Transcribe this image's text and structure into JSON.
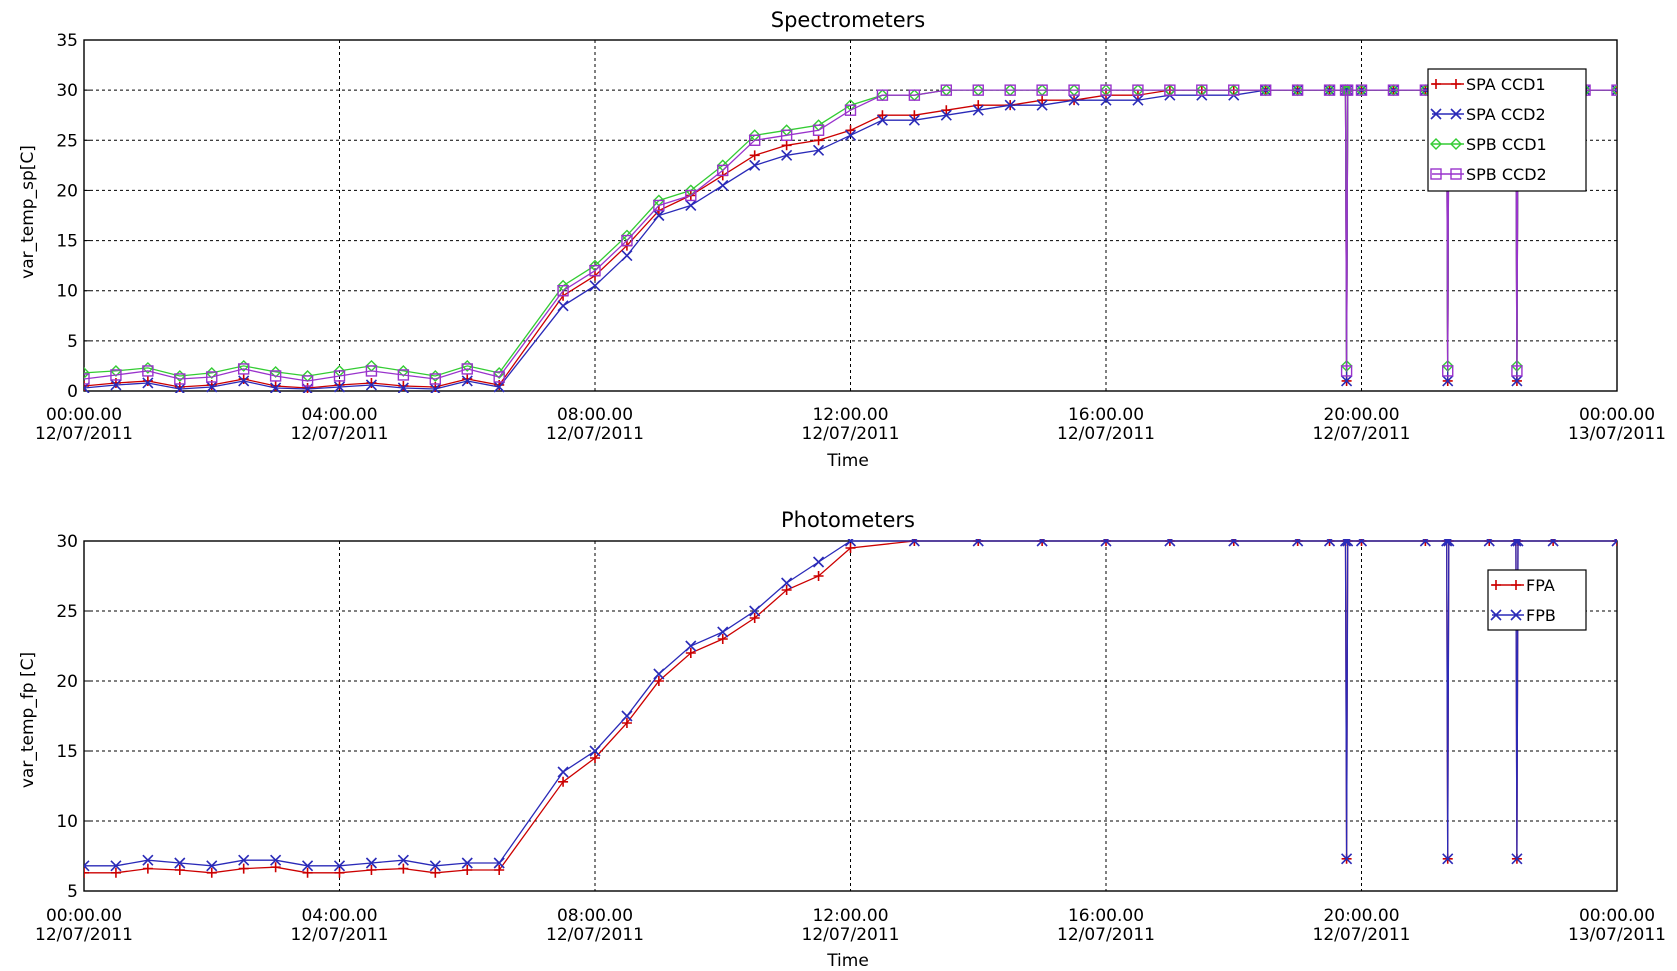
{
  "chart_data": [
    {
      "type": "line",
      "title": "Spectrometers",
      "xlabel": "Time",
      "ylabel": "var_temp_sp[C]",
      "xlim": [
        "12/07/2011 00:00:00",
        "13/07/2011 00:00:00"
      ],
      "ylim": [
        0,
        35
      ],
      "yticks": [
        0,
        5,
        10,
        15,
        20,
        25,
        30,
        35
      ],
      "xticks": [
        {
          "time": "00:00.00",
          "date": "12/07/2011"
        },
        {
          "time": "04:00.00",
          "date": "12/07/2011"
        },
        {
          "time": "08:00.00",
          "date": "12/07/2011"
        },
        {
          "time": "12:00.00",
          "date": "12/07/2011"
        },
        {
          "time": "16:00.00",
          "date": "12/07/2011"
        },
        {
          "time": "20:00.00",
          "date": "12/07/2011"
        },
        {
          "time": "00:00.00",
          "date": "13/07/2011"
        }
      ],
      "grid": true,
      "legend_position": "top-right",
      "series": [
        {
          "name": "SPA CCD1",
          "color": "#cc0000",
          "marker": "plus",
          "x": [
            "00:00",
            "00:30",
            "01:00",
            "01:30",
            "02:00",
            "02:30",
            "03:00",
            "03:30",
            "04:00",
            "04:30",
            "05:00",
            "05:30",
            "06:00",
            "06:30",
            "07:30",
            "08:00",
            "08:30",
            "09:00",
            "09:30",
            "10:00",
            "10:30",
            "11:00",
            "11:30",
            "12:00",
            "12:30",
            "13:00",
            "13:30",
            "14:00",
            "14:30",
            "15:00",
            "15:30",
            "16:00",
            "16:30",
            "17:00",
            "17:30",
            "18:00",
            "18:30",
            "19:00",
            "19:30",
            "19:45",
            "19:46",
            "19:47",
            "20:00",
            "20:30",
            "21:00",
            "21:15",
            "21:20",
            "21:21",
            "21:22",
            "21:30",
            "22:00",
            "22:20",
            "22:25",
            "22:26",
            "22:27",
            "22:30",
            "23:00",
            "23:30",
            "24:00"
          ],
          "y": [
            0.5,
            0.8,
            1.0,
            0.4,
            0.6,
            1.2,
            0.5,
            0.3,
            0.6,
            0.8,
            0.5,
            0.4,
            1.2,
            0.6,
            9.5,
            11.5,
            14.5,
            18.0,
            19.5,
            21.5,
            23.5,
            24.5,
            25.0,
            26.0,
            27.5,
            27.5,
            28.0,
            28.5,
            28.5,
            29.0,
            29.0,
            29.5,
            29.5,
            30,
            30,
            30,
            30,
            30,
            30,
            30,
            1.0,
            30,
            30,
            30,
            30,
            30,
            30,
            1.0,
            30,
            30,
            30,
            30,
            30,
            1.0,
            30,
            30,
            30,
            30,
            30
          ]
        },
        {
          "name": "SPA CCD2",
          "color": "#2a2ab8",
          "marker": "cross",
          "x": [
            "00:00",
            "00:30",
            "01:00",
            "01:30",
            "02:00",
            "02:30",
            "03:00",
            "03:30",
            "04:00",
            "04:30",
            "05:00",
            "05:30",
            "06:00",
            "06:30",
            "07:30",
            "08:00",
            "08:30",
            "09:00",
            "09:30",
            "10:00",
            "10:30",
            "11:00",
            "11:30",
            "12:00",
            "12:30",
            "13:00",
            "13:30",
            "14:00",
            "14:30",
            "15:00",
            "15:30",
            "16:00",
            "16:30",
            "17:00",
            "17:30",
            "18:00",
            "18:30",
            "19:00",
            "19:30",
            "19:45",
            "19:46",
            "19:47",
            "20:00",
            "20:30",
            "21:00",
            "21:15",
            "21:20",
            "21:21",
            "21:22",
            "21:30",
            "22:00",
            "22:20",
            "22:25",
            "22:26",
            "22:27",
            "22:30",
            "23:00",
            "23:30",
            "24:00"
          ],
          "y": [
            0.3,
            0.6,
            0.8,
            0.2,
            0.4,
            1.0,
            0.3,
            0.2,
            0.4,
            0.6,
            0.3,
            0.2,
            1.0,
            0.4,
            8.5,
            10.5,
            13.5,
            17.5,
            18.5,
            20.5,
            22.5,
            23.5,
            24.0,
            25.5,
            27.0,
            27.0,
            27.5,
            28.0,
            28.5,
            28.5,
            29.0,
            29.0,
            29.0,
            29.5,
            29.5,
            29.5,
            30,
            30,
            30,
            30,
            1.0,
            30,
            30,
            30,
            30,
            30,
            30,
            1.0,
            30,
            30,
            30,
            30,
            30,
            1.0,
            30,
            30,
            30,
            30,
            30
          ]
        },
        {
          "name": "SPB CCD1",
          "color": "#33cc33",
          "marker": "diamond",
          "x": [
            "00:00",
            "00:30",
            "01:00",
            "01:30",
            "02:00",
            "02:30",
            "03:00",
            "03:30",
            "04:00",
            "04:30",
            "05:00",
            "05:30",
            "06:00",
            "06:30",
            "07:30",
            "08:00",
            "08:30",
            "09:00",
            "09:30",
            "10:00",
            "10:30",
            "11:00",
            "11:30",
            "12:00",
            "12:30",
            "13:00",
            "13:30",
            "14:00",
            "14:30",
            "15:00",
            "15:30",
            "16:00",
            "16:30",
            "17:00",
            "17:30",
            "18:00",
            "18:30",
            "19:00",
            "19:30",
            "19:45",
            "19:46",
            "19:47",
            "20:00",
            "20:30",
            "21:00",
            "21:15",
            "21:20",
            "21:21",
            "21:22",
            "21:30",
            "22:00",
            "22:20",
            "22:25",
            "22:26",
            "22:27",
            "22:30",
            "23:00",
            "23:30",
            "24:00"
          ],
          "y": [
            1.8,
            2.0,
            2.3,
            1.5,
            1.8,
            2.5,
            1.9,
            1.5,
            2.0,
            2.5,
            2.0,
            1.5,
            2.5,
            1.8,
            10.5,
            12.5,
            15.5,
            19.0,
            20.0,
            22.5,
            25.5,
            26.0,
            26.5,
            28.5,
            29.5,
            29.5,
            30,
            30,
            30,
            30,
            30,
            30,
            30,
            30,
            30,
            30,
            30,
            30,
            30,
            30,
            2.5,
            30,
            30,
            30,
            30,
            30,
            30,
            2.5,
            30,
            30,
            30,
            30,
            30,
            2.5,
            30,
            30,
            30,
            30,
            30
          ]
        },
        {
          "name": "SPB CCD2",
          "color": "#9933cc",
          "marker": "square",
          "x": [
            "00:00",
            "00:30",
            "01:00",
            "01:30",
            "02:00",
            "02:30",
            "03:00",
            "03:30",
            "04:00",
            "04:30",
            "05:00",
            "05:30",
            "06:00",
            "06:30",
            "07:30",
            "08:00",
            "08:30",
            "09:00",
            "09:30",
            "10:00",
            "10:30",
            "11:00",
            "11:30",
            "12:00",
            "12:30",
            "13:00",
            "13:30",
            "14:00",
            "14:30",
            "15:00",
            "15:30",
            "16:00",
            "16:30",
            "17:00",
            "17:30",
            "18:00",
            "18:30",
            "19:00",
            "19:30",
            "19:45",
            "19:46",
            "19:47",
            "20:00",
            "20:30",
            "21:00",
            "21:15",
            "21:20",
            "21:21",
            "21:22",
            "21:30",
            "22:00",
            "22:20",
            "22:25",
            "22:26",
            "22:27",
            "22:30",
            "23:00",
            "23:30",
            "24:00"
          ],
          "y": [
            1.2,
            1.6,
            2.0,
            1.2,
            1.4,
            2.2,
            1.5,
            1.0,
            1.5,
            2.0,
            1.6,
            1.2,
            2.2,
            1.4,
            10.0,
            12.0,
            15.0,
            18.5,
            19.5,
            22.0,
            25.0,
            25.5,
            26.0,
            28.0,
            29.5,
            29.5,
            30,
            30,
            30,
            30,
            30,
            30,
            30,
            30,
            30,
            30,
            30,
            30,
            30,
            30,
            2.0,
            30,
            30,
            30,
            30,
            30,
            30,
            2.0,
            30,
            30,
            30,
            30,
            30,
            2.0,
            30,
            30,
            30,
            30,
            30
          ]
        }
      ]
    },
    {
      "type": "line",
      "title": "Photometers",
      "xlabel": "Time",
      "ylabel": "var_temp_fp [C]",
      "xlim": [
        "12/07/2011 00:00:00",
        "13/07/2011 00:00:00"
      ],
      "ylim": [
        5,
        30
      ],
      "yticks": [
        5,
        10,
        15,
        20,
        25,
        30
      ],
      "xticks": [
        {
          "time": "00:00.00",
          "date": "12/07/2011"
        },
        {
          "time": "04:00.00",
          "date": "12/07/2011"
        },
        {
          "time": "08:00.00",
          "date": "12/07/2011"
        },
        {
          "time": "12:00.00",
          "date": "12/07/2011"
        },
        {
          "time": "16:00.00",
          "date": "12/07/2011"
        },
        {
          "time": "20:00.00",
          "date": "12/07/2011"
        },
        {
          "time": "00:00.00",
          "date": "13/07/2011"
        }
      ],
      "grid": true,
      "legend_position": "top-right",
      "series": [
        {
          "name": "FPA",
          "color": "#cc0000",
          "marker": "plus",
          "x": [
            "00:00",
            "00:30",
            "01:00",
            "01:30",
            "02:00",
            "02:30",
            "03:00",
            "03:30",
            "04:00",
            "04:30",
            "05:00",
            "05:30",
            "06:00",
            "06:30",
            "07:30",
            "08:00",
            "08:30",
            "09:00",
            "09:30",
            "10:00",
            "10:30",
            "11:00",
            "11:30",
            "12:00",
            "13:00",
            "14:00",
            "15:00",
            "16:00",
            "17:00",
            "18:00",
            "19:00",
            "19:30",
            "19:45",
            "19:46",
            "19:47",
            "20:00",
            "21:00",
            "21:20",
            "21:21",
            "21:22",
            "22:00",
            "22:25",
            "22:26",
            "22:27",
            "23:00",
            "24:00"
          ],
          "y": [
            6.3,
            6.3,
            6.6,
            6.5,
            6.3,
            6.6,
            6.7,
            6.3,
            6.3,
            6.5,
            6.6,
            6.3,
            6.5,
            6.5,
            12.8,
            14.5,
            17.0,
            20.0,
            22.0,
            23.0,
            24.5,
            26.5,
            27.5,
            29.5,
            30,
            30,
            30,
            30,
            30,
            30,
            30,
            30,
            30,
            7.3,
            30,
            30,
            30,
            30,
            7.3,
            30,
            30,
            30,
            7.3,
            30,
            30,
            30
          ]
        },
        {
          "name": "FPB",
          "color": "#2a2ab8",
          "marker": "cross",
          "x": [
            "00:00",
            "00:30",
            "01:00",
            "01:30",
            "02:00",
            "02:30",
            "03:00",
            "03:30",
            "04:00",
            "04:30",
            "05:00",
            "05:30",
            "06:00",
            "06:30",
            "07:30",
            "08:00",
            "08:30",
            "09:00",
            "09:30",
            "10:00",
            "10:30",
            "11:00",
            "11:30",
            "12:00",
            "13:00",
            "14:00",
            "15:00",
            "16:00",
            "17:00",
            "18:00",
            "19:00",
            "19:30",
            "19:45",
            "19:46",
            "19:47",
            "20:00",
            "21:00",
            "21:20",
            "21:21",
            "21:22",
            "22:00",
            "22:25",
            "22:26",
            "22:27",
            "23:00",
            "24:00"
          ],
          "y": [
            6.8,
            6.8,
            7.2,
            7.0,
            6.8,
            7.2,
            7.2,
            6.8,
            6.8,
            7.0,
            7.2,
            6.8,
            7.0,
            7.0,
            13.5,
            15.0,
            17.5,
            20.5,
            22.5,
            23.5,
            25.0,
            27.0,
            28.5,
            30,
            30,
            30,
            30,
            30,
            30,
            30,
            30,
            30,
            30,
            7.3,
            30,
            30,
            30,
            30,
            7.3,
            30,
            30,
            30,
            7.3,
            30,
            30,
            30
          ]
        }
      ]
    }
  ]
}
